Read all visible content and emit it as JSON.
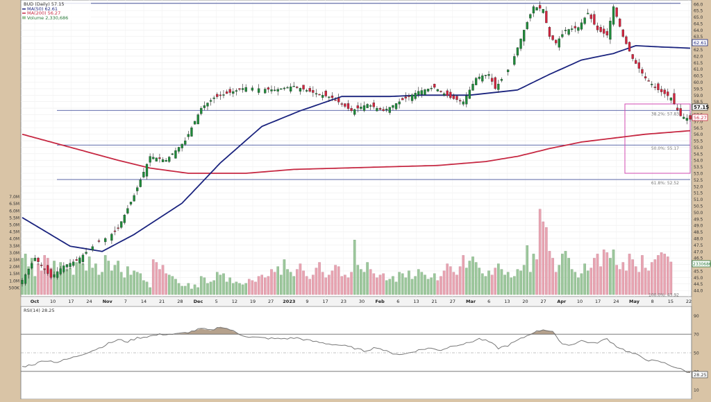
{
  "legend": {
    "title": "BUD (Daily) 57.15",
    "ma50": "MA(50) 62.61",
    "ma200": "MA(200) 56.27",
    "volume": "Volume 2,330,686"
  },
  "rsi_label": "RSI(14) 28.25",
  "colors": {
    "up": "#1f8a3a",
    "down": "#d2253f",
    "vol_up": "#9cc79c",
    "vol_down": "#e8a4b1",
    "ma50": "#1a237e",
    "ma200": "#c62842",
    "fib": "#2a3a8f",
    "box": "#d24ab0",
    "rsi": "#777777"
  },
  "price_tag": "57.15",
  "ma50_tag": "62.61",
  "ma200_tag": "56.27",
  "volume_tag": "2330686",
  "rsi_tag": "28.25",
  "fib_labels": [
    {
      "text": "38.2%: 57.83",
      "price": 57.83
    },
    {
      "text": "50.0%: 55.17",
      "price": 55.17
    },
    {
      "text": "61.8%: 52.52",
      "price": 52.52
    },
    {
      "text": "100.0%: 43.92",
      "price": 43.92
    }
  ],
  "chart_data": {
    "type": "candlestick",
    "title": "BUD (Daily) 57.15",
    "price_axis": {
      "ticks": [
        "66.0",
        "65.5",
        "65.0",
        "64.5",
        "64.0",
        "63.5",
        "63.0",
        "62.5",
        "62.0",
        "61.5",
        "61.0",
        "60.5",
        "60.0",
        "59.5",
        "59.0",
        "58.5",
        "58.0",
        "57.5",
        "57.0",
        "56.5",
        "56.0",
        "55.5",
        "55.0",
        "54.5",
        "54.0",
        "53.5",
        "53.0",
        "52.5",
        "52.0",
        "51.5",
        "51.0",
        "50.5",
        "50.0",
        "49.5",
        "49.0",
        "48.5",
        "48.0",
        "47.5",
        "47.0",
        "46.5",
        "46.0",
        "45.5",
        "45.0",
        "44.5",
        "44.0"
      ],
      "range": [
        43.9,
        66.2
      ]
    },
    "volume_axis": {
      "ticks": [
        "7.0M",
        "6.5M",
        "6.0M",
        "5.5M",
        "5.0M",
        "4.5M",
        "4.0M",
        "3.5M",
        "3.0M",
        "2.5M",
        "2.0M",
        "1.5M",
        "1.0M",
        "500K"
      ]
    },
    "rsi_axis": {
      "ticks": [
        "90",
        "70",
        "50",
        "30",
        "10"
      ],
      "overbought": 70,
      "oversold": 30
    },
    "x_labels": [
      "Oct",
      "10",
      "17",
      "24",
      "Nov",
      "7",
      "14",
      "21",
      "28",
      "Dec",
      "5",
      "12",
      "19",
      "27",
      "2023",
      "9",
      "17",
      "23",
      "30",
      "Feb",
      "6",
      "13",
      "21",
      "27",
      "Mar",
      "6",
      "13",
      "20",
      "27",
      "Apr",
      "10",
      "17",
      "24",
      "May",
      "8",
      "15",
      "22"
    ],
    "price_path": [
      [
        0,
        44.8
      ],
      [
        4,
        46.5
      ],
      [
        9,
        45.0
      ],
      [
        13,
        45.9
      ],
      [
        17,
        46.3
      ],
      [
        24,
        47.8
      ],
      [
        27,
        48.1
      ],
      [
        30,
        48.8
      ],
      [
        35,
        51.3
      ],
      [
        40,
        54.3
      ],
      [
        45,
        54.0
      ],
      [
        51,
        55.5
      ],
      [
        56,
        58.0
      ],
      [
        60,
        58.8
      ],
      [
        65,
        59.2
      ],
      [
        70,
        59.6
      ],
      [
        79,
        59.4
      ],
      [
        85,
        59.7
      ],
      [
        91,
        59.2
      ],
      [
        97,
        58.8
      ],
      [
        103,
        57.8
      ],
      [
        108,
        58.3
      ],
      [
        113,
        57.8
      ],
      [
        118,
        58.5
      ],
      [
        124,
        59.3
      ],
      [
        129,
        59.6
      ],
      [
        134,
        58.8
      ],
      [
        138,
        58.5
      ],
      [
        142,
        60.3
      ],
      [
        144,
        60.5
      ],
      [
        146,
        60.6
      ],
      [
        148,
        59.5
      ],
      [
        153,
        61.3
      ],
      [
        157,
        64.0
      ],
      [
        160,
        65.8
      ],
      [
        163,
        65.6
      ],
      [
        165,
        63.5
      ],
      [
        167,
        63.0
      ],
      [
        170,
        64.0
      ],
      [
        174,
        64.2
      ],
      [
        177,
        65.3
      ],
      [
        180,
        64.0
      ],
      [
        183,
        63.6
      ],
      [
        185,
        65.8
      ],
      [
        188,
        63.5
      ],
      [
        191,
        61.8
      ],
      [
        195,
        60.3
      ],
      [
        199,
        59.4
      ],
      [
        203,
        58.8
      ],
      [
        206,
        57.4
      ],
      [
        209,
        57.15
      ]
    ],
    "ma50": [
      [
        0,
        49.6
      ],
      [
        15,
        47.4
      ],
      [
        25,
        47.0
      ],
      [
        35,
        48.3
      ],
      [
        50,
        50.7
      ],
      [
        62,
        53.8
      ],
      [
        75,
        56.6
      ],
      [
        87,
        57.8
      ],
      [
        100,
        58.9
      ],
      [
        115,
        58.9
      ],
      [
        125,
        59.0
      ],
      [
        140,
        59.0
      ],
      [
        155,
        59.4
      ],
      [
        165,
        60.6
      ],
      [
        175,
        61.7
      ],
      [
        185,
        62.2
      ],
      [
        192,
        62.8
      ],
      [
        200,
        62.7
      ],
      [
        209,
        62.61
      ]
    ],
    "ma200": [
      [
        0,
        56.0
      ],
      [
        15,
        55.0
      ],
      [
        30,
        54.0
      ],
      [
        40,
        53.4
      ],
      [
        52,
        53.0
      ],
      [
        70,
        53.0
      ],
      [
        85,
        53.3
      ],
      [
        100,
        53.4
      ],
      [
        115,
        53.5
      ],
      [
        130,
        53.6
      ],
      [
        145,
        53.9
      ],
      [
        155,
        54.3
      ],
      [
        165,
        54.9
      ],
      [
        175,
        55.4
      ],
      [
        185,
        55.7
      ],
      [
        195,
        56.0
      ],
      [
        209,
        56.27
      ]
    ],
    "volume": [
      2.6,
      2.9,
      2.0,
      2.6,
      1.3,
      2.2,
      1.7,
      2.8,
      2.6,
      1.9,
      2.4,
      1.5,
      2.3,
      1.6,
      1.8,
      1.9,
      1.4,
      2.3,
      2.5,
      2.2,
      1.7,
      2.7,
      1.9,
      2.2,
      1.4,
      1.6,
      2.8,
      2.4,
      1.7,
      2.1,
      2.4,
      1.6,
      1.2,
      2.0,
      1.4,
      1.7,
      1.6,
      1.5,
      1.0,
      0.9,
      0.5,
      2.5,
      2.3,
      1.8,
      2.1,
      1.5,
      1.4,
      1.3,
      1.1,
      0.8,
      0.6,
      0.6,
      0.8,
      0.4,
      0.7,
      0.5,
      1.3,
      1.2,
      0.8,
      0.9,
      1.0,
      1.6,
      1.4,
      1.5,
      0.9,
      1.2,
      0.8,
      0.9,
      0.8,
      0.7,
      0.8,
      1.1,
      1.0,
      0.9,
      1.3,
      1.4,
      1.2,
      1.3,
      1.8,
      1.6,
      2.0,
      1.4,
      2.5,
      1.8,
      1.6,
      1.3,
      1.8,
      2.2,
      1.7,
      1.3,
      1.1,
      1.4,
      1.9,
      2.3,
      1.6,
      1.2,
      1.4,
      1.7,
      2.1,
      2.0,
      1.3,
      1.4,
      1.2,
      1.6,
      3.9,
      2.1,
      1.8,
      1.6,
      2.3,
      1.8,
      1.5,
      1.2,
      1.4,
      1.5,
      1.0,
      1.1,
      1.3,
      0.9,
      1.6,
      1.5,
      1.2,
      1.7,
      1.1,
      1.3,
      1.8,
      1.6,
      1.4,
      1.1,
      1.2,
      1.5,
      1.0,
      1.3,
      1.7,
      2.2,
      2.0,
      1.6,
      1.4,
      2.0,
      2.8,
      1.9,
      2.4,
      2.7,
      2.3,
      1.9,
      1.5,
      1.3,
      1.7,
      1.4,
      1.9,
      2.2,
      1.8,
      1.4,
      1.6,
      1.2,
      1.3,
      1.8,
      1.7,
      2.1,
      3.5,
      1.6,
      2.9,
      2.5,
      6.1,
      5.2,
      4.8,
      3.1,
      2.6,
      1.6,
      2.1,
      2.9,
      3.1,
      2.6,
      1.8,
      1.6,
      1.2,
      1.5,
      2.2,
      1.7,
      1.9,
      2.6,
      2.9,
      2.0,
      3.2,
      3.0,
      2.6,
      3.2,
      2.1,
      1.8,
      2.3,
      1.7,
      2.9,
      2.5,
      2.0,
      1.6,
      2.8,
      1.9,
      1.7,
      2.3,
      2.5,
      2.8,
      3.0,
      2.9,
      2.7,
      2.33
    ],
    "rsi": [
      [
        0,
        35
      ],
      [
        4,
        38
      ],
      [
        7,
        42
      ],
      [
        11,
        40
      ],
      [
        16,
        45
      ],
      [
        20,
        50
      ],
      [
        24,
        55
      ],
      [
        27,
        60
      ],
      [
        30,
        64
      ],
      [
        33,
        62
      ],
      [
        36,
        66
      ],
      [
        40,
        68
      ],
      [
        44,
        70
      ],
      [
        48,
        70
      ],
      [
        52,
        72
      ],
      [
        56,
        76
      ],
      [
        59,
        74
      ],
      [
        62,
        78
      ],
      [
        65,
        75
      ],
      [
        68,
        70
      ],
      [
        71,
        67
      ],
      [
        75,
        66
      ],
      [
        80,
        65
      ],
      [
        86,
        66
      ],
      [
        90,
        63
      ],
      [
        95,
        60
      ],
      [
        100,
        58
      ],
      [
        104,
        55
      ],
      [
        107,
        52
      ],
      [
        111,
        56
      ],
      [
        115,
        50
      ],
      [
        119,
        48
      ],
      [
        123,
        52
      ],
      [
        127,
        55
      ],
      [
        131,
        53
      ],
      [
        135,
        58
      ],
      [
        139,
        60
      ],
      [
        143,
        65
      ],
      [
        146,
        62
      ],
      [
        149,
        55
      ],
      [
        152,
        58
      ],
      [
        156,
        65
      ],
      [
        160,
        72
      ],
      [
        163,
        75
      ],
      [
        166,
        73
      ],
      [
        168,
        62
      ],
      [
        171,
        58
      ],
      [
        175,
        63
      ],
      [
        179,
        60
      ],
      [
        183,
        65
      ],
      [
        186,
        57
      ],
      [
        189,
        52
      ],
      [
        192,
        48
      ],
      [
        196,
        42
      ],
      [
        200,
        40
      ],
      [
        204,
        35
      ],
      [
        209,
        28.25
      ]
    ]
  }
}
